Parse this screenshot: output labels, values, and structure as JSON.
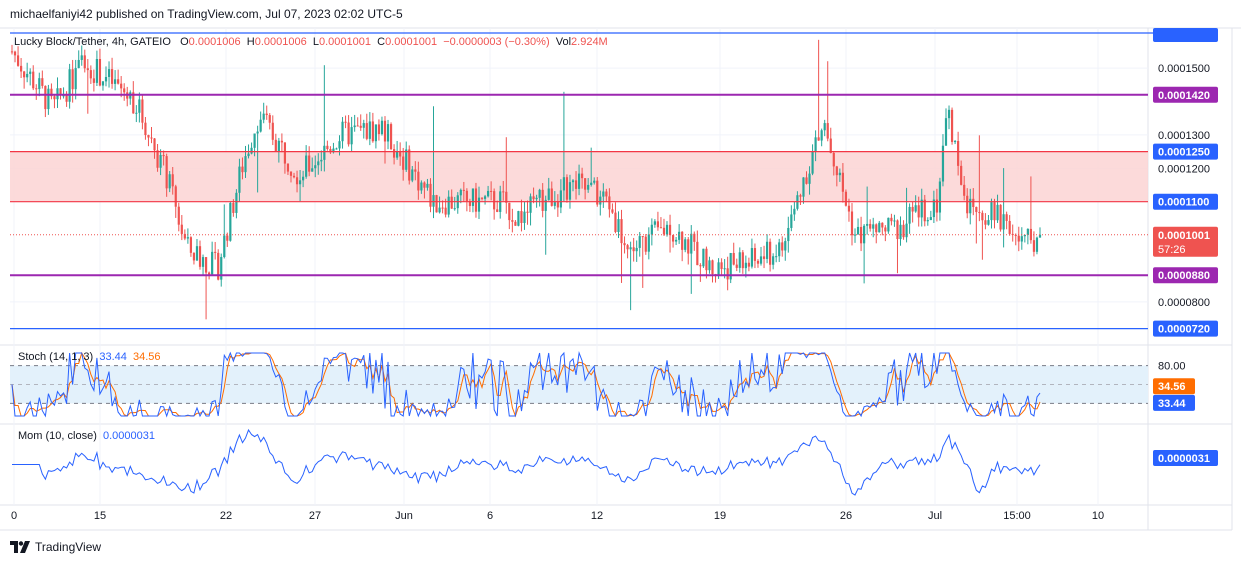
{
  "publisher": "michaelfaniyi42 published on TradingView.com, Jul 07, 2023 02:02 UTC-5",
  "brand": "TradingView",
  "brand_icon": "tradingview-logo-icon",
  "symbol_line": {
    "symbol": "Lucky Block/Tether, 4h, GATEIO",
    "o_label": "O",
    "o": "0.0001006",
    "h_label": "H",
    "h": "0.0001006",
    "l_label": "L",
    "l": "0.0001001",
    "c_label": "C",
    "c": "0.0001001",
    "change": "−0.0000003 (−0.30%)",
    "vol_label": "Vol",
    "vol": "2.924M"
  },
  "stoch_legend": {
    "name": "Stoch (14, 1, 3)",
    "k": "33.44",
    "d": "34.56"
  },
  "mom_legend": {
    "name": "Mom (10, close)",
    "value": "0.0000031"
  },
  "colors": {
    "up": "#26a69a",
    "down": "#ef5350",
    "level_purple": "#9c27b0",
    "level_red": "#f23645",
    "level_blue": "#2962ff",
    "zone_fill": "#fbd3d3",
    "stoch_k": "#2962ff",
    "stoch_d": "#ff6d00",
    "stoch_band": "#e3f1fb",
    "mom": "#2962ff"
  },
  "chart_data": [
    {
      "type": "candlestick",
      "title": "Lucky Block/Tether, 4h, GATEIO",
      "y_ticks": [
        "0.0001500",
        "0.0001300",
        "0.0001200",
        "0.0000800"
      ],
      "y_range": [
        6.8e-05,
        0.000162
      ],
      "x_ticks": [
        "0",
        "15",
        "22",
        "27",
        "Jun",
        "6",
        "12",
        "19",
        "26",
        "Jul",
        "15:00",
        "10"
      ],
      "horizontal_lines": [
        {
          "value": 0.000142,
          "label": "0.0001420",
          "kind": "purple"
        },
        {
          "value": 0.000125,
          "label": "0.0001250",
          "kind": "red"
        },
        {
          "value": 0.00011,
          "label": "0.0001100",
          "kind": "red"
        },
        {
          "value": 8.8e-05,
          "label": "0.0000880",
          "kind": "purple"
        },
        {
          "value": 7.2e-05,
          "label": "0.0000720",
          "kind": "blue"
        }
      ],
      "zone": {
        "from": 0.00011,
        "to": 0.000125
      },
      "last_price": {
        "value": 0.0001001,
        "label": "0.0001001",
        "countdown": "57:26"
      },
      "segments": [
        {
          "x": 0,
          "y": 0.000155
        },
        {
          "x": 0.04,
          "y": 0.000138
        },
        {
          "x": 0.07,
          "y": 0.000152
        },
        {
          "x": 0.1,
          "y": 0.000145
        },
        {
          "x": 0.12,
          "y": 0.00014
        },
        {
          "x": 0.15,
          "y": 0.000118
        },
        {
          "x": 0.17,
          "y": 9.6e-05
        },
        {
          "x": 0.2,
          "y": 9e-05
        },
        {
          "x": 0.225,
          "y": 0.000122
        },
        {
          "x": 0.24,
          "y": 0.000136
        },
        {
          "x": 0.28,
          "y": 0.000118
        },
        {
          "x": 0.32,
          "y": 0.00013
        },
        {
          "x": 0.36,
          "y": 0.000132
        },
        {
          "x": 0.41,
          "y": 0.00011
        },
        {
          "x": 0.48,
          "y": 0.00011
        },
        {
          "x": 0.49,
          "y": 0.000105
        },
        {
          "x": 0.52,
          "y": 0.000111
        },
        {
          "x": 0.55,
          "y": 0.000115
        },
        {
          "x": 0.58,
          "y": 0.00011
        },
        {
          "x": 0.6,
          "y": 9.5e-05
        },
        {
          "x": 0.64,
          "y": 0.000103
        },
        {
          "x": 0.68,
          "y": 9e-05
        },
        {
          "x": 0.72,
          "y": 9.2e-05
        },
        {
          "x": 0.75,
          "y": 9.6e-05
        },
        {
          "x": 0.77,
          "y": 0.000117
        },
        {
          "x": 0.79,
          "y": 0.000133
        },
        {
          "x": 0.82,
          "y": 0.0001
        },
        {
          "x": 0.86,
          "y": 0.000102
        },
        {
          "x": 0.9,
          "y": 0.00011
        },
        {
          "x": 0.91,
          "y": 0.000138
        },
        {
          "x": 0.93,
          "y": 0.000108
        },
        {
          "x": 0.97,
          "y": 0.000104
        },
        {
          "x": 0.98,
          "y": 9.7e-05
        },
        {
          "x": 1.0,
          "y": 0.0001001
        }
      ]
    },
    {
      "type": "line",
      "title": "Stoch (14, 1, 3)",
      "ylim": [
        0,
        100
      ],
      "y_ticks": [
        "80.00"
      ],
      "bands": [
        80,
        20
      ],
      "series": [
        {
          "name": "%K",
          "last": 33.44,
          "last_label": "33.44"
        },
        {
          "name": "%D",
          "last": 34.56,
          "last_label": "34.56"
        }
      ]
    },
    {
      "type": "line",
      "title": "Mom (10, close)",
      "series": [
        {
          "name": "Mom",
          "last": 3.1e-06,
          "last_label": "0.0000031"
        }
      ]
    }
  ]
}
